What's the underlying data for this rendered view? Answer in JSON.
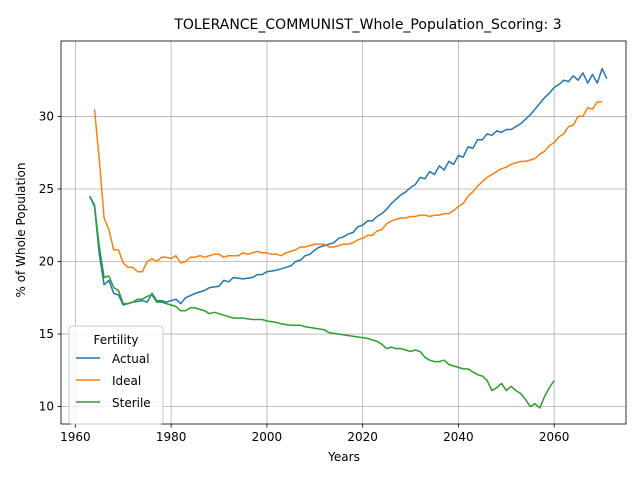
{
  "chart_data": {
    "type": "line",
    "title": "TOLERANCE_COMMUNIST_Whole_Population_Scoring: 3",
    "xlabel": "Years",
    "ylabel": "% of Whole Population",
    "xlim": [
      1957,
      2075
    ],
    "ylim": [
      8.8,
      35.2
    ],
    "xticks": [
      1960,
      1980,
      2000,
      2020,
      2040,
      2060
    ],
    "yticks": [
      10,
      15,
      20,
      25,
      30
    ],
    "grid": true,
    "legend": {
      "title": "Fertility",
      "position": "lower-left"
    },
    "series": [
      {
        "name": "Actual",
        "color": "#1f77b4",
        "points": [
          [
            1963,
            24.5
          ],
          [
            1964,
            23.8
          ],
          [
            1965,
            20.5
          ],
          [
            1966,
            18.4
          ],
          [
            1967,
            18.7
          ],
          [
            1968,
            17.8
          ],
          [
            1969,
            17.7
          ],
          [
            1970,
            17.0
          ],
          [
            1972,
            17.2
          ],
          [
            1974,
            17.3
          ],
          [
            1975,
            17.2
          ],
          [
            1976,
            17.8
          ],
          [
            1977,
            17.3
          ],
          [
            1978,
            17.3
          ],
          [
            1979,
            17.2
          ],
          [
            1980,
            17.3
          ],
          [
            1981,
            17.4
          ],
          [
            1982,
            17.1
          ],
          [
            1983,
            17.5
          ],
          [
            1985,
            17.8
          ],
          [
            1987,
            18.0
          ],
          [
            1988,
            18.2
          ],
          [
            1990,
            18.3
          ],
          [
            1991,
            18.7
          ],
          [
            1992,
            18.6
          ],
          [
            1993,
            18.9
          ],
          [
            1995,
            18.8
          ],
          [
            1997,
            18.9
          ],
          [
            1998,
            19.1
          ],
          [
            1999,
            19.1
          ],
          [
            2000,
            19.3
          ],
          [
            2002,
            19.4
          ],
          [
            2003,
            19.5
          ],
          [
            2004,
            19.6
          ],
          [
            2005,
            19.7
          ],
          [
            2006,
            20.0
          ],
          [
            2007,
            20.1
          ],
          [
            2008,
            20.4
          ],
          [
            2009,
            20.5
          ],
          [
            2010,
            20.8
          ],
          [
            2011,
            21.0
          ],
          [
            2013,
            21.2
          ],
          [
            2014,
            21.3
          ],
          [
            2015,
            21.6
          ],
          [
            2016,
            21.7
          ],
          [
            2017,
            21.9
          ],
          [
            2018,
            22.0
          ],
          [
            2019,
            22.4
          ],
          [
            2020,
            22.5
          ],
          [
            2021,
            22.8
          ],
          [
            2022,
            22.8
          ],
          [
            2023,
            23.1
          ],
          [
            2024,
            23.3
          ],
          [
            2025,
            23.6
          ],
          [
            2026,
            24.0
          ],
          [
            2027,
            24.3
          ],
          [
            2028,
            24.6
          ],
          [
            2029,
            24.8
          ],
          [
            2030,
            25.1
          ],
          [
            2031,
            25.3
          ],
          [
            2032,
            25.8
          ],
          [
            2033,
            25.7
          ],
          [
            2034,
            26.2
          ],
          [
            2035,
            26.0
          ],
          [
            2036,
            26.6
          ],
          [
            2037,
            26.3
          ],
          [
            2038,
            26.9
          ],
          [
            2039,
            26.7
          ],
          [
            2040,
            27.3
          ],
          [
            2041,
            27.2
          ],
          [
            2042,
            27.9
          ],
          [
            2043,
            27.8
          ],
          [
            2044,
            28.4
          ],
          [
            2045,
            28.4
          ],
          [
            2046,
            28.8
          ],
          [
            2047,
            28.7
          ],
          [
            2048,
            29.0
          ],
          [
            2049,
            28.9
          ],
          [
            2050,
            29.1
          ],
          [
            2051,
            29.1
          ],
          [
            2052,
            29.3
          ],
          [
            2053,
            29.5
          ],
          [
            2054,
            29.8
          ],
          [
            2055,
            30.1
          ],
          [
            2056,
            30.5
          ],
          [
            2057,
            30.9
          ],
          [
            2058,
            31.3
          ],
          [
            2059,
            31.6
          ],
          [
            2060,
            32.0
          ],
          [
            2061,
            32.2
          ],
          [
            2062,
            32.5
          ],
          [
            2063,
            32.4
          ],
          [
            2064,
            32.8
          ],
          [
            2065,
            32.5
          ],
          [
            2066,
            33.0
          ],
          [
            2067,
            32.3
          ],
          [
            2068,
            32.9
          ],
          [
            2069,
            32.3
          ],
          [
            2070,
            33.3
          ],
          [
            2071,
            32.6
          ]
        ]
      },
      {
        "name": "Ideal",
        "color": "#ff7f0e",
        "points": [
          [
            1964,
            30.5
          ],
          [
            1965,
            27.0
          ],
          [
            1966,
            23.0
          ],
          [
            1967,
            22.2
          ],
          [
            1968,
            20.8
          ],
          [
            1969,
            20.8
          ],
          [
            1970,
            19.9
          ],
          [
            1971,
            19.6
          ],
          [
            1972,
            19.6
          ],
          [
            1973,
            19.3
          ],
          [
            1974,
            19.3
          ],
          [
            1975,
            20.0
          ],
          [
            1976,
            20.2
          ],
          [
            1977,
            20.0
          ],
          [
            1978,
            20.3
          ],
          [
            1979,
            20.3
          ],
          [
            1980,
            20.2
          ],
          [
            1981,
            20.4
          ],
          [
            1982,
            19.9
          ],
          [
            1983,
            20.0
          ],
          [
            1984,
            20.3
          ],
          [
            1985,
            20.3
          ],
          [
            1986,
            20.4
          ],
          [
            1987,
            20.3
          ],
          [
            1988,
            20.4
          ],
          [
            1989,
            20.5
          ],
          [
            1990,
            20.5
          ],
          [
            1991,
            20.3
          ],
          [
            1992,
            20.4
          ],
          [
            1993,
            20.4
          ],
          [
            1994,
            20.4
          ],
          [
            1995,
            20.6
          ],
          [
            1996,
            20.5
          ],
          [
            1997,
            20.6
          ],
          [
            1998,
            20.7
          ],
          [
            1999,
            20.6
          ],
          [
            2000,
            20.6
          ],
          [
            2001,
            20.5
          ],
          [
            2002,
            20.5
          ],
          [
            2003,
            20.4
          ],
          [
            2004,
            20.6
          ],
          [
            2005,
            20.7
          ],
          [
            2006,
            20.8
          ],
          [
            2007,
            21.0
          ],
          [
            2008,
            21.0
          ],
          [
            2009,
            21.1
          ],
          [
            2010,
            21.2
          ],
          [
            2011,
            21.2
          ],
          [
            2012,
            21.2
          ],
          [
            2013,
            21.0
          ],
          [
            2014,
            21.0
          ],
          [
            2015,
            21.1
          ],
          [
            2016,
            21.2
          ],
          [
            2017,
            21.2
          ],
          [
            2018,
            21.3
          ],
          [
            2019,
            21.5
          ],
          [
            2020,
            21.6
          ],
          [
            2021,
            21.8
          ],
          [
            2022,
            21.8
          ],
          [
            2023,
            22.1
          ],
          [
            2024,
            22.2
          ],
          [
            2025,
            22.6
          ],
          [
            2026,
            22.8
          ],
          [
            2027,
            22.9
          ],
          [
            2028,
            23.0
          ],
          [
            2029,
            23.0
          ],
          [
            2030,
            23.1
          ],
          [
            2031,
            23.1
          ],
          [
            2032,
            23.2
          ],
          [
            2033,
            23.2
          ],
          [
            2034,
            23.1
          ],
          [
            2035,
            23.2
          ],
          [
            2036,
            23.2
          ],
          [
            2037,
            23.3
          ],
          [
            2038,
            23.3
          ],
          [
            2039,
            23.5
          ],
          [
            2040,
            23.8
          ],
          [
            2041,
            24.0
          ],
          [
            2042,
            24.5
          ],
          [
            2043,
            24.8
          ],
          [
            2044,
            25.2
          ],
          [
            2045,
            25.5
          ],
          [
            2046,
            25.8
          ],
          [
            2047,
            26.0
          ],
          [
            2048,
            26.2
          ],
          [
            2049,
            26.4
          ],
          [
            2050,
            26.5
          ],
          [
            2051,
            26.7
          ],
          [
            2052,
            26.8
          ],
          [
            2053,
            26.9
          ],
          [
            2054,
            26.9
          ],
          [
            2055,
            27.0
          ],
          [
            2056,
            27.1
          ],
          [
            2057,
            27.4
          ],
          [
            2058,
            27.6
          ],
          [
            2059,
            28.0
          ],
          [
            2060,
            28.2
          ],
          [
            2061,
            28.6
          ],
          [
            2062,
            28.8
          ],
          [
            2063,
            29.3
          ],
          [
            2064,
            29.4
          ],
          [
            2065,
            30.0
          ],
          [
            2066,
            30.0
          ],
          [
            2067,
            30.6
          ],
          [
            2068,
            30.5
          ],
          [
            2069,
            31.0
          ],
          [
            2070,
            31.0
          ]
        ]
      },
      {
        "name": "Sterile",
        "color": "#2ca02c",
        "points": [
          [
            1963,
            24.5
          ],
          [
            1964,
            23.9
          ],
          [
            1965,
            21.0
          ],
          [
            1966,
            18.9
          ],
          [
            1967,
            19.0
          ],
          [
            1968,
            18.2
          ],
          [
            1969,
            18.0
          ],
          [
            1970,
            17.1
          ],
          [
            1971,
            17.1
          ],
          [
            1972,
            17.2
          ],
          [
            1973,
            17.4
          ],
          [
            1974,
            17.4
          ],
          [
            1975,
            17.6
          ],
          [
            1976,
            17.7
          ],
          [
            1977,
            17.2
          ],
          [
            1978,
            17.2
          ],
          [
            1979,
            17.1
          ],
          [
            1980,
            17.0
          ],
          [
            1981,
            16.9
          ],
          [
            1982,
            16.6
          ],
          [
            1983,
            16.6
          ],
          [
            1984,
            16.8
          ],
          [
            1985,
            16.8
          ],
          [
            1986,
            16.7
          ],
          [
            1987,
            16.6
          ],
          [
            1988,
            16.4
          ],
          [
            1989,
            16.5
          ],
          [
            1990,
            16.4
          ],
          [
            1991,
            16.3
          ],
          [
            1992,
            16.2
          ],
          [
            1993,
            16.1
          ],
          [
            1995,
            16.1
          ],
          [
            1997,
            16.0
          ],
          [
            1999,
            16.0
          ],
          [
            2000,
            15.9
          ],
          [
            2002,
            15.8
          ],
          [
            2003,
            15.7
          ],
          [
            2005,
            15.6
          ],
          [
            2007,
            15.6
          ],
          [
            2008,
            15.5
          ],
          [
            2010,
            15.4
          ],
          [
            2012,
            15.3
          ],
          [
            2013,
            15.1
          ],
          [
            2015,
            15.0
          ],
          [
            2017,
            14.9
          ],
          [
            2019,
            14.8
          ],
          [
            2021,
            14.7
          ],
          [
            2022,
            14.6
          ],
          [
            2023,
            14.5
          ],
          [
            2024,
            14.3
          ],
          [
            2025,
            14.0
          ],
          [
            2026,
            14.1
          ],
          [
            2027,
            14.0
          ],
          [
            2028,
            14.0
          ],
          [
            2029,
            13.9
          ],
          [
            2030,
            13.8
          ],
          [
            2031,
            13.9
          ],
          [
            2032,
            13.8
          ],
          [
            2033,
            13.4
          ],
          [
            2034,
            13.2
          ],
          [
            2035,
            13.1
          ],
          [
            2036,
            13.1
          ],
          [
            2037,
            13.2
          ],
          [
            2038,
            12.9
          ],
          [
            2039,
            12.8
          ],
          [
            2040,
            12.7
          ],
          [
            2041,
            12.6
          ],
          [
            2042,
            12.6
          ],
          [
            2043,
            12.4
          ],
          [
            2044,
            12.2
          ],
          [
            2045,
            12.1
          ],
          [
            2046,
            11.8
          ],
          [
            2047,
            11.1
          ],
          [
            2048,
            11.3
          ],
          [
            2049,
            11.6
          ],
          [
            2050,
            11.1
          ],
          [
            2051,
            11.4
          ],
          [
            2052,
            11.1
          ],
          [
            2053,
            10.9
          ],
          [
            2054,
            10.5
          ],
          [
            2055,
            10.0
          ],
          [
            2056,
            10.2
          ],
          [
            2057,
            9.9
          ],
          [
            2058,
            10.7
          ],
          [
            2059,
            11.3
          ],
          [
            2060,
            11.8
          ]
        ]
      }
    ]
  }
}
